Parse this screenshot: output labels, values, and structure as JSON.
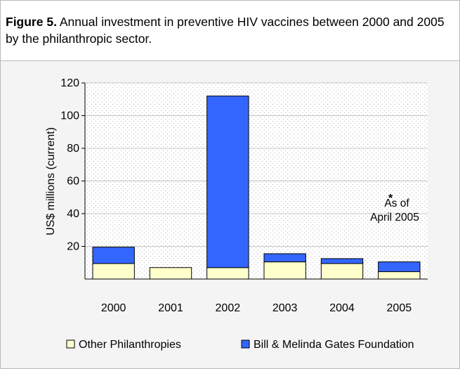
{
  "figure": {
    "label": "Figure 5.",
    "caption": "Annual investment in preventive HIV vaccines between 2000 and 2005 by the philanthropic sector."
  },
  "chart_data": {
    "type": "bar",
    "stacked": true,
    "categories": [
      "2000",
      "2001",
      "2002",
      "2003",
      "2004",
      "2005"
    ],
    "series": [
      {
        "name": "Other Philanthropies",
        "color": "#ffffcc",
        "values": [
          9.5,
          7,
          7,
          10.5,
          9.5,
          4.5
        ]
      },
      {
        "name": "Bill & Melinda Gates Foundation",
        "color": "#3366ff",
        "values": [
          10,
          0,
          105,
          5,
          3,
          6
        ]
      }
    ],
    "ylabel": "US$ millions (current)",
    "ylim": [
      0,
      120
    ],
    "yticks": [
      20,
      40,
      60,
      80,
      100,
      120
    ],
    "annotation": {
      "mark": "*",
      "line1": "As of",
      "line2": "April 2005",
      "category": "2005"
    },
    "legend_position": "bottom",
    "grid": true,
    "plot_background": "dotted"
  }
}
